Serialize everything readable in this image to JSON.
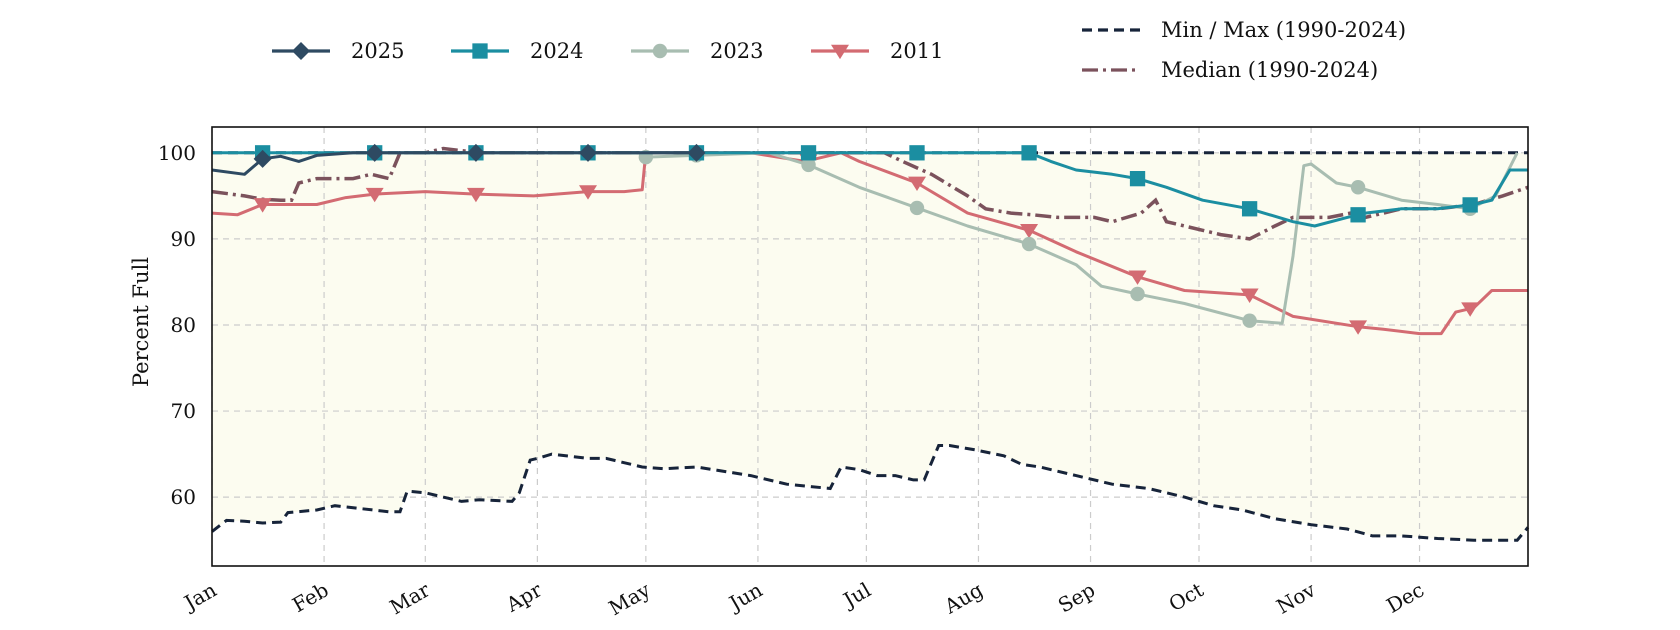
{
  "chart_data": {
    "type": "line",
    "title": "",
    "xlabel": "",
    "ylabel": "Percent Full",
    "ylim": [
      52,
      103
    ],
    "xlim": [
      1,
      365
    ],
    "grid": true,
    "shaded_band": "between min and max",
    "x_ticks": [
      {
        "day": 1,
        "label": "Jan"
      },
      {
        "day": 32,
        "label": "Feb"
      },
      {
        "day": 60,
        "label": "Mar"
      },
      {
        "day": 91,
        "label": "Apr"
      },
      {
        "day": 121,
        "label": "May"
      },
      {
        "day": 152,
        "label": "Jun"
      },
      {
        "day": 182,
        "label": "Jul"
      },
      {
        "day": 213,
        "label": "Aug"
      },
      {
        "day": 244,
        "label": "Sep"
      },
      {
        "day": 274,
        "label": "Oct"
      },
      {
        "day": 305,
        "label": "Nov"
      },
      {
        "day": 335,
        "label": "Dec"
      }
    ],
    "y_ticks": [
      60,
      70,
      80,
      90,
      100
    ],
    "series": [
      {
        "name": "2025",
        "color": "#2e4a62",
        "marker": "diamond",
        "line": "solid",
        "points": [
          [
            1,
            98
          ],
          [
            10,
            97.5
          ],
          [
            15,
            99.3
          ],
          [
            20,
            99.6
          ],
          [
            25,
            99
          ],
          [
            30,
            99.7
          ],
          [
            40,
            100
          ],
          [
            45,
            100
          ],
          [
            60,
            100
          ],
          [
            75,
            100
          ],
          [
            100,
            100
          ],
          [
            106,
            100
          ],
          [
            125,
            100
          ],
          [
            136,
            100
          ]
        ],
        "marker_days": [
          15,
          46,
          74,
          105,
          135
        ]
      },
      {
        "name": "2024",
        "color": "#1b8ea1",
        "marker": "square",
        "line": "solid",
        "points": [
          [
            1,
            100
          ],
          [
            160,
            100
          ],
          [
            166,
            100
          ],
          [
            196,
            100
          ],
          [
            227,
            100
          ],
          [
            233,
            99
          ],
          [
            240,
            98
          ],
          [
            250,
            97.5
          ],
          [
            257,
            97
          ],
          [
            265,
            96
          ],
          [
            275,
            94.5
          ],
          [
            288,
            93.5
          ],
          [
            300,
            92
          ],
          [
            306,
            91.5
          ],
          [
            315,
            92.5
          ],
          [
            320,
            93
          ],
          [
            330,
            93.5
          ],
          [
            340,
            93.5
          ],
          [
            350,
            94
          ],
          [
            355,
            94.5
          ],
          [
            360,
            98
          ],
          [
            365,
            98
          ]
        ],
        "marker_days": [
          15,
          46,
          74,
          105,
          135,
          166,
          196,
          227,
          257,
          288,
          318,
          349
        ]
      },
      {
        "name": "2023",
        "color": "#a8bdb1",
        "marker": "circle",
        "line": "solid",
        "points": [
          [
            121,
            99.5
          ],
          [
            155,
            100
          ],
          [
            166,
            98.6
          ],
          [
            180,
            96
          ],
          [
            196,
            93.6
          ],
          [
            210,
            91.5
          ],
          [
            227,
            89.4
          ],
          [
            240,
            87
          ],
          [
            247,
            84.5
          ],
          [
            257,
            83.6
          ],
          [
            270,
            82.5
          ],
          [
            288,
            80.5
          ],
          [
            297,
            80.2
          ],
          [
            300,
            88
          ],
          [
            303,
            98.5
          ],
          [
            305,
            98.7
          ],
          [
            312,
            96.5
          ],
          [
            318,
            96
          ],
          [
            330,
            94.5
          ],
          [
            340,
            94
          ],
          [
            349,
            93.5
          ],
          [
            356,
            95
          ],
          [
            362,
            100
          ]
        ],
        "marker_days": [
          121,
          135,
          166,
          196,
          227,
          257,
          288,
          318,
          349
        ]
      },
      {
        "name": "2011",
        "color": "#d36b72",
        "marker": "triangle-down",
        "line": "solid",
        "points": [
          [
            1,
            93
          ],
          [
            8,
            92.8
          ],
          [
            15,
            94
          ],
          [
            30,
            94
          ],
          [
            38,
            94.8
          ],
          [
            46,
            95.2
          ],
          [
            60,
            95.5
          ],
          [
            74,
            95.2
          ],
          [
            90,
            95
          ],
          [
            105,
            95.5
          ],
          [
            115,
            95.5
          ],
          [
            120,
            95.7
          ],
          [
            121,
            100
          ],
          [
            150,
            100
          ],
          [
            165,
            99
          ],
          [
            175,
            100
          ],
          [
            180,
            99
          ],
          [
            196,
            96.5
          ],
          [
            210,
            93
          ],
          [
            227,
            91
          ],
          [
            240,
            88.5
          ],
          [
            257,
            85.6
          ],
          [
            270,
            84
          ],
          [
            288,
            83.5
          ],
          [
            300,
            81
          ],
          [
            318,
            79.8
          ],
          [
            325,
            79.5
          ],
          [
            335,
            79
          ],
          [
            341,
            79
          ],
          [
            345,
            81.5
          ],
          [
            350,
            82
          ],
          [
            355,
            84
          ],
          [
            365,
            84
          ]
        ],
        "marker_days": [
          15,
          46,
          74,
          105,
          166,
          196,
          227,
          257,
          288,
          318,
          349
        ]
      },
      {
        "name": "Min / Max (1990-2024)",
        "color": "#17243a",
        "marker": "none",
        "line": "dashed",
        "min_points": [
          [
            1,
            56
          ],
          [
            5,
            57.3
          ],
          [
            10,
            57.2
          ],
          [
            15,
            57
          ],
          [
            20,
            57.1
          ],
          [
            22,
            58.2
          ],
          [
            30,
            58.5
          ],
          [
            35,
            59
          ],
          [
            50,
            58.3
          ],
          [
            53,
            58.3
          ],
          [
            55,
            60.7
          ],
          [
            60,
            60.5
          ],
          [
            70,
            59.5
          ],
          [
            75,
            59.7
          ],
          [
            84,
            59.5
          ],
          [
            86,
            60.5
          ],
          [
            89,
            64.3
          ],
          [
            91,
            64.5
          ],
          [
            95,
            65
          ],
          [
            105,
            64.5
          ],
          [
            110,
            64.5
          ],
          [
            120,
            63.5
          ],
          [
            126,
            63.3
          ],
          [
            135,
            63.5
          ],
          [
            150,
            62.5
          ],
          [
            160,
            61.5
          ],
          [
            172,
            61
          ],
          [
            175,
            63.5
          ],
          [
            180,
            63.2
          ],
          [
            185,
            62.5
          ],
          [
            190,
            62.5
          ],
          [
            195,
            62
          ],
          [
            198,
            62
          ],
          [
            202,
            66
          ],
          [
            205,
            66
          ],
          [
            212,
            65.5
          ],
          [
            220,
            64.8
          ],
          [
            225,
            63.8
          ],
          [
            230,
            63.5
          ],
          [
            240,
            62.5
          ],
          [
            250,
            61.5
          ],
          [
            260,
            61
          ],
          [
            270,
            60
          ],
          [
            278,
            59
          ],
          [
            286,
            58.5
          ],
          [
            295,
            57.5
          ],
          [
            305,
            56.8
          ],
          [
            315,
            56.3
          ],
          [
            322,
            55.5
          ],
          [
            330,
            55.5
          ],
          [
            340,
            55.2
          ],
          [
            350,
            55
          ],
          [
            355,
            55
          ],
          [
            360,
            55
          ],
          [
            362,
            55
          ],
          [
            365,
            56.5
          ]
        ],
        "max_points": [
          [
            1,
            100
          ],
          [
            365,
            100
          ]
        ]
      },
      {
        "name": "Median (1990-2024)",
        "color": "#7b525c",
        "marker": "none",
        "line": "dashdot",
        "points": [
          [
            1,
            95.5
          ],
          [
            10,
            95
          ],
          [
            15,
            94.6
          ],
          [
            20,
            94.5
          ],
          [
            23,
            94.5
          ],
          [
            25,
            96.5
          ],
          [
            30,
            97
          ],
          [
            40,
            97
          ],
          [
            45,
            97.5
          ],
          [
            50,
            97
          ],
          [
            53,
            100
          ],
          [
            60,
            100
          ],
          [
            65,
            100.5
          ],
          [
            75,
            100
          ],
          [
            90,
            100
          ],
          [
            100,
            100
          ],
          [
            105,
            100
          ],
          [
            150,
            100
          ],
          [
            180,
            100
          ],
          [
            187,
            100
          ],
          [
            192,
            99
          ],
          [
            200,
            97.5
          ],
          [
            210,
            95
          ],
          [
            215,
            93.5
          ],
          [
            222,
            93
          ],
          [
            228,
            92.8
          ],
          [
            235,
            92.5
          ],
          [
            245,
            92.5
          ],
          [
            250,
            92
          ],
          [
            258,
            93
          ],
          [
            262,
            94.5
          ],
          [
            265,
            92
          ],
          [
            270,
            91.5
          ],
          [
            275,
            91
          ],
          [
            280,
            90.5
          ],
          [
            288,
            90
          ],
          [
            295,
            91.5
          ],
          [
            300,
            92.5
          ],
          [
            310,
            92.5
          ],
          [
            316,
            93
          ],
          [
            320,
            92.5
          ],
          [
            325,
            93
          ],
          [
            330,
            93.5
          ],
          [
            340,
            93.5
          ],
          [
            350,
            94
          ],
          [
            358,
            95
          ],
          [
            365,
            96
          ]
        ]
      }
    ],
    "legend": [
      {
        "label": "2025",
        "series": 0
      },
      {
        "label": "2024",
        "series": 1
      },
      {
        "label": "2023",
        "series": 2
      },
      {
        "label": "2011",
        "series": 3
      },
      {
        "label": "Min / Max (1990-2024)",
        "series": 4
      },
      {
        "label": "Median (1990-2024)",
        "series": 5
      }
    ],
    "legend_placement": "top (outside plot)"
  }
}
